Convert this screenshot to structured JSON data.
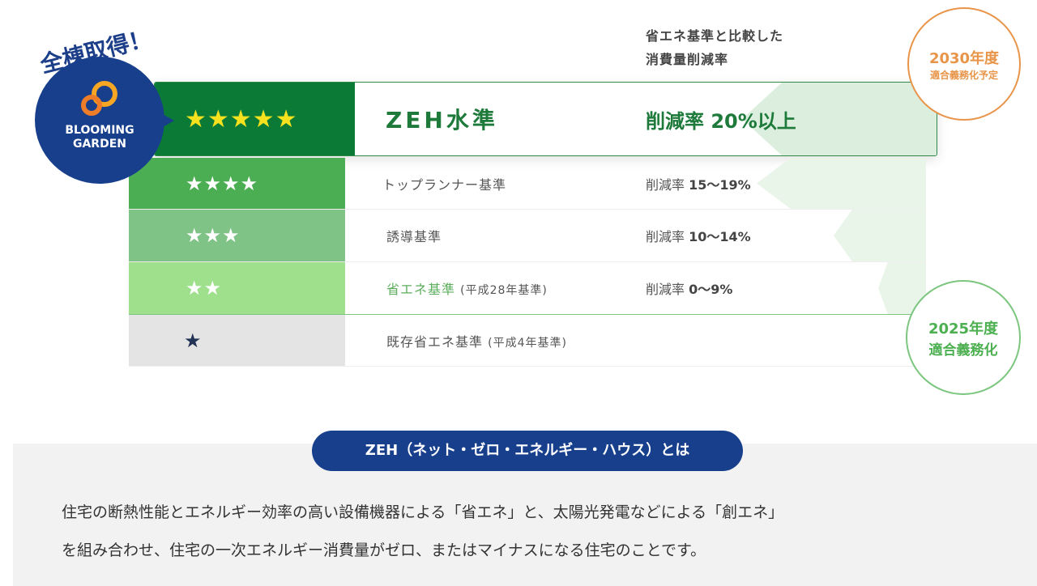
{
  "badge": {
    "caption": "全棟取得！",
    "logo_line1": "BLOOMING",
    "logo_line2": "GARDEN"
  },
  "header": {
    "line1": "省エネ基準と比較した",
    "line2": "消費量削減率"
  },
  "rows": [
    {
      "stars": "★★★★★",
      "label": "ZEH水準",
      "rate_prefix": "削減率",
      "rate_value": "20%以上",
      "color": "#0b7a36"
    },
    {
      "stars": "★★★★",
      "label": "トップランナー基準",
      "rate_prefix": "削減率",
      "rate_value": "15〜19%",
      "color": "#4cae52"
    },
    {
      "stars": "★★★",
      "label": "誘導基準",
      "rate_prefix": "削減率",
      "rate_value": "10〜14%",
      "color": "#7fc386"
    },
    {
      "stars": "★★",
      "label": "省エネ基準",
      "label_note": "(平成28年基準)",
      "rate_prefix": "削減率",
      "rate_value": "0〜9%",
      "color": "#9fe08c"
    },
    {
      "stars": "★",
      "label": "既存省エネ基準",
      "label_note": "(平成4年基準)",
      "color": "#e4e4e4"
    }
  ],
  "bubble_2030": {
    "year": "2030年度",
    "text": "適合義務化予定",
    "color": "#e8954a"
  },
  "bubble_2025": {
    "year": "2025年度",
    "text": "適合義務化",
    "color": "#5cb85c"
  },
  "zeh_info": {
    "title": "ZEH（ネット・ゼロ・エネルギー・ハウス）とは",
    "line1": "住宅の断熱性能とエネルギー効率の高い設備機器による「省エネ」と、太陽光発電などによる「創エネ」",
    "line2": "を組み合わせ、住宅の一次エネルギー消費量がゼロ、またはマイナスになる住宅のことです。"
  }
}
